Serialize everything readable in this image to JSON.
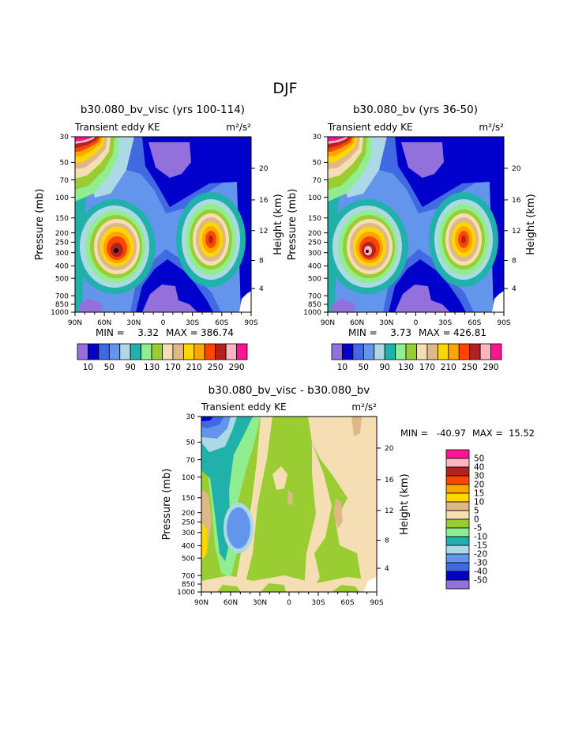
{
  "page_title": "DJF",
  "chart_data": [
    {
      "type": "heatmap",
      "title": "b30.080_bv_visc (yrs 100-114)",
      "subtitle_left": "Transient eddy KE",
      "units": "m²/s²",
      "ylabel": "Pressure (mb)",
      "ylabel_right": "Height (km)",
      "x_ticks": [
        "90N",
        "60N",
        "30N",
        "0",
        "30S",
        "60S",
        "90S"
      ],
      "y_ticks": [
        "30",
        "50",
        "70",
        "100",
        "150",
        "200",
        "250",
        "300",
        "400",
        "500",
        "700",
        "850",
        "1000"
      ],
      "y_ticks_right": [
        "20",
        "16",
        "12",
        "8",
        "4"
      ],
      "min_label": "MIN =",
      "min_value": "3.32",
      "max_label": "MAX =",
      "max_value": "386.74",
      "colorbar_labels": [
        "10",
        "50",
        "90",
        "130",
        "170",
        "210",
        "250",
        "290"
      ],
      "colorbar_levels": [
        10,
        30,
        50,
        70,
        90,
        110,
        130,
        150,
        170,
        190,
        210,
        230,
        250,
        270,
        290
      ],
      "colorbar_colors": [
        "#9370db",
        "#0000cd",
        "#4169e1",
        "#6495ed",
        "#add8e6",
        "#20b2aa",
        "#90ee90",
        "#9acd32",
        "#f5deb3",
        "#deb887",
        "#ffd700",
        "#ffa500",
        "#ff4500",
        "#b22222",
        "#ffb6c1",
        "#ff1493"
      ],
      "peaks": [
        {
          "lat": 50,
          "p": 300,
          "value": 386.74
        },
        {
          "lat": -50,
          "p": 250,
          "value": 300
        },
        {
          "lat": 80,
          "p": 30,
          "value": 300
        }
      ]
    },
    {
      "type": "heatmap",
      "title": "b30.080_bv (yrs 36-50)",
      "subtitle_left": "Transient eddy KE",
      "units": "m²/s²",
      "ylabel": "Pressure (mb)",
      "ylabel_right": "Height (km)",
      "x_ticks": [
        "90N",
        "60N",
        "30N",
        "0",
        "30S",
        "60S",
        "90S"
      ],
      "y_ticks": [
        "30",
        "50",
        "70",
        "100",
        "150",
        "200",
        "250",
        "300",
        "400",
        "500",
        "700",
        "850",
        "1000"
      ],
      "y_ticks_right": [
        "20",
        "16",
        "12",
        "8",
        "4"
      ],
      "min_label": "MIN =",
      "min_value": "3.73",
      "max_label": "MAX =",
      "max_value": "426.81",
      "colorbar_labels": [
        "10",
        "50",
        "90",
        "130",
        "170",
        "210",
        "250",
        "290"
      ],
      "colorbar_levels": [
        10,
        30,
        50,
        70,
        90,
        110,
        130,
        150,
        170,
        190,
        210,
        230,
        250,
        270,
        290
      ],
      "colorbar_colors": [
        "#9370db",
        "#0000cd",
        "#4169e1",
        "#6495ed",
        "#add8e6",
        "#20b2aa",
        "#90ee90",
        "#9acd32",
        "#f5deb3",
        "#deb887",
        "#ffd700",
        "#ffa500",
        "#ff4500",
        "#b22222",
        "#ffb6c1",
        "#ff1493"
      ],
      "peaks": [
        {
          "lat": 50,
          "p": 300,
          "value": 426.81
        },
        {
          "lat": -50,
          "p": 250,
          "value": 300
        },
        {
          "lat": 80,
          "p": 30,
          "value": 300
        }
      ]
    },
    {
      "type": "heatmap",
      "title": "b30.080_bv_visc - b30.080_bv",
      "subtitle_left": "Transient eddy KE",
      "units": "m²/s²",
      "ylabel": "Pressure (mb)",
      "ylabel_right": "Height (km)",
      "x_ticks": [
        "90N",
        "60N",
        "30N",
        "0",
        "30S",
        "60S",
        "90S"
      ],
      "y_ticks": [
        "30",
        "50",
        "70",
        "100",
        "150",
        "200",
        "250",
        "300",
        "400",
        "500",
        "700",
        "850",
        "1000"
      ],
      "y_ticks_right": [
        "20",
        "16",
        "12",
        "8",
        "4"
      ],
      "min_label": "MIN =",
      "min_value": "-40.97",
      "max_label": "MAX =",
      "max_value": "15.52",
      "colorbar_labels": [
        "50",
        "40",
        "30",
        "20",
        "15",
        "10",
        "5",
        "0",
        "-5",
        "-10",
        "-15",
        "-20",
        "-30",
        "-40",
        "-50"
      ],
      "colorbar_colors": [
        "#ff1493",
        "#ffb6c1",
        "#b22222",
        "#ff4500",
        "#ffa500",
        "#ffd700",
        "#deb887",
        "#f5deb3",
        "#9acd32",
        "#90ee90",
        "#20b2aa",
        "#add8e6",
        "#6495ed",
        "#4169e1",
        "#0000cd",
        "#9370db"
      ]
    }
  ]
}
